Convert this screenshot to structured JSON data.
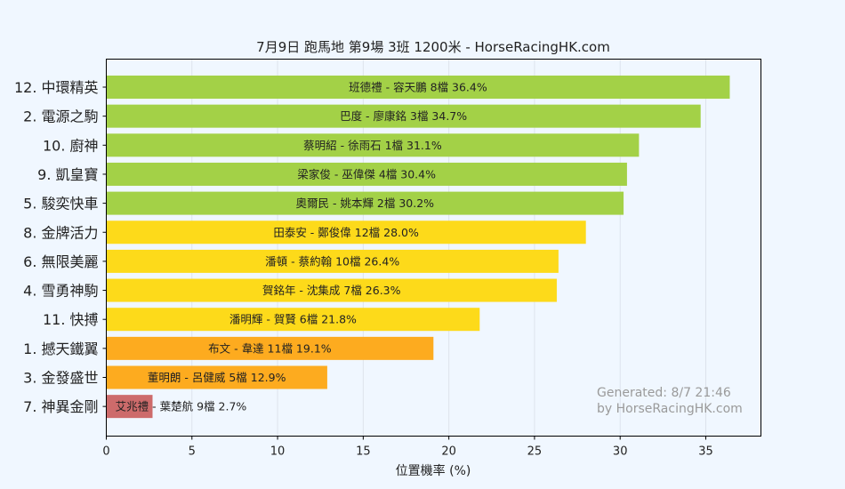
{
  "chart_data": {
    "type": "bar",
    "orientation": "horizontal",
    "title": "7月9日  跑馬地  第9場  3班  1200米 - HorseRacingHK.com",
    "xlabel": "位置機率 (%)",
    "ylabel": "",
    "xlim": [
      0,
      38.22
    ],
    "xticks": [
      0,
      5,
      10,
      15,
      20,
      25,
      30,
      35
    ],
    "grid": "vertical",
    "categories": [
      "12. 中環精英",
      "2. 電源之駒",
      "10. 廚神",
      "9. 凱皇寶",
      "5. 駿奕快車",
      "8. 金牌活力",
      "6. 無限美麗",
      "4. 雪勇神駒",
      "11. 快搏",
      "1. 撼天鐵翼",
      "3. 金發盛世",
      "7. 神異金剛"
    ],
    "values": [
      36.4,
      34.7,
      31.1,
      30.4,
      30.2,
      28.0,
      26.4,
      26.3,
      21.8,
      19.1,
      12.9,
      2.7
    ],
    "bar_labels": [
      "班德禮 - 容天鵬 8檔  36.4%",
      "巴度 - 廖康銘 3檔  34.7%",
      "蔡明紹 - 徐雨石 1檔  31.1%",
      "梁家俊 - 巫偉傑 4檔  30.4%",
      "奧爾民 - 姚本輝 2檔  30.2%",
      "田泰安 - 鄭俊偉 12檔  28.0%",
      "潘頓 - 蔡約翰 10檔  26.4%",
      "賀銘年 - 沈集成 7檔  26.3%",
      "潘明輝 - 賀賢 6檔  21.8%",
      "布文 - 韋達 11檔  19.1%",
      "董明朗 - 呂健威 5檔  12.9%",
      "艾兆禮 - 葉楚航 9檔  2.7%"
    ],
    "bar_colors": [
      "#a3d147",
      "#a3d147",
      "#a3d147",
      "#a3d147",
      "#a3d147",
      "#fdda1a",
      "#fdda1a",
      "#fdda1a",
      "#fdda1a",
      "#fdab1f",
      "#fdab1f",
      "#cd6b6b"
    ],
    "watermark": [
      "Generated: 8/7 21:46",
      "by HorseRacingHK.com"
    ]
  },
  "colors": {
    "background": "#f0f7ff",
    "grid": "#dde3ec"
  }
}
